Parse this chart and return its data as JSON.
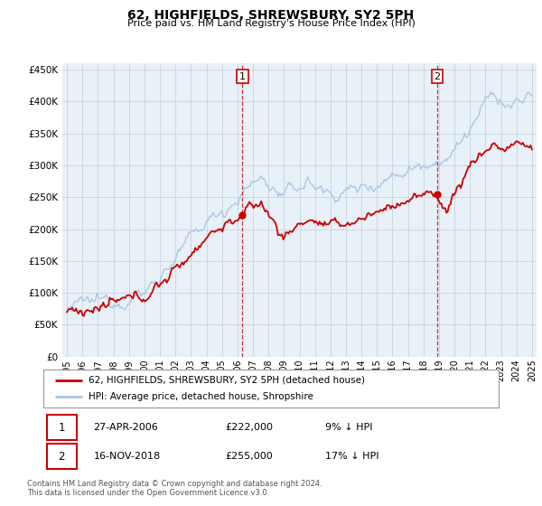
{
  "title": "62, HIGHFIELDS, SHREWSBURY, SY2 5PH",
  "subtitle": "Price paid vs. HM Land Registry's House Price Index (HPI)",
  "yticks": [
    0,
    50000,
    100000,
    150000,
    200000,
    250000,
    300000,
    350000,
    400000,
    450000
  ],
  "xlim": [
    1994.7,
    2025.3
  ],
  "ylim": [
    0,
    460000
  ],
  "legend_entries": [
    "62, HIGHFIELDS, SHREWSBURY, SY2 5PH (detached house)",
    "HPI: Average price, detached house, Shropshire"
  ],
  "annotation1": {
    "label": "1",
    "date": "27-APR-2006",
    "price": "£222,000",
    "pct": "9% ↓ HPI",
    "year": 2006.32,
    "value": 222000
  },
  "annotation2": {
    "label": "2",
    "date": "16-NOV-2018",
    "price": "£255,000",
    "pct": "17% ↓ HPI",
    "year": 2018.88,
    "value": 255000
  },
  "hpi_color": "#a8c4e0",
  "price_color": "#cc0000",
  "bg_color": "#e8f0f8",
  "grid_color": "#d0d8e4",
  "footer": "Contains HM Land Registry data © Crown copyright and database right 2024.\nThis data is licensed under the Open Government Licence v3.0."
}
